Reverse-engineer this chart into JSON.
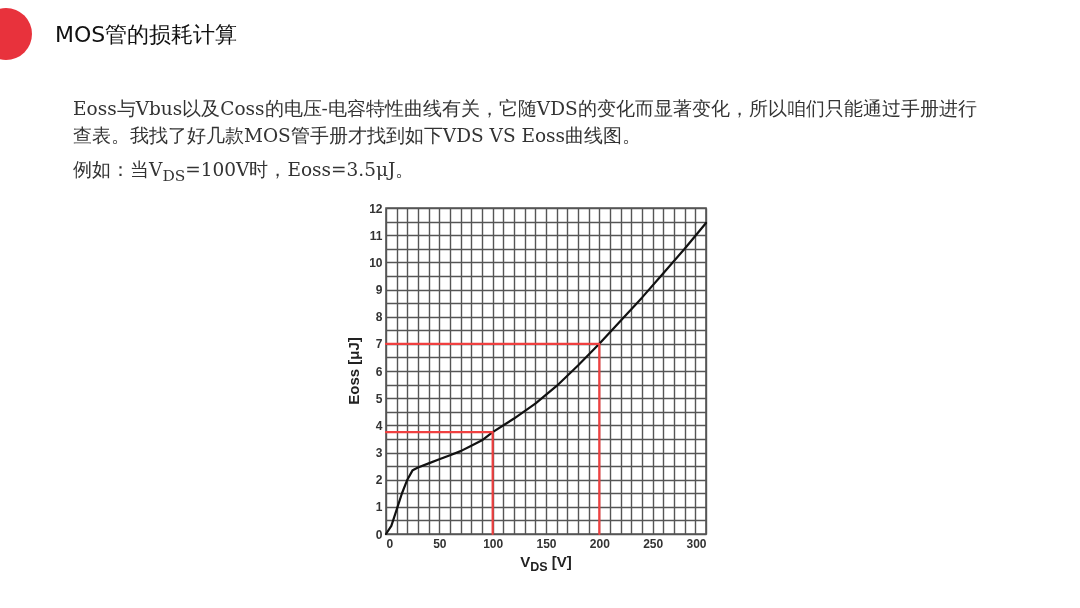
{
  "chart_data": {
    "type": "line",
    "title": "MOS管的损耗计算",
    "subtitle": "Eoss与Vbus以及Coss的电压-电容特性曲线有关，它随VDS的变化而显著变化，所以咱们只能通过手册进行查表。我找了好几款MOS管手册才找到如下VDS VS Eoss曲线图。",
    "annotations": [
      "例如：当V$_{DS}$=100V时，Eoss=3.5μJ。"
    ],
    "xlabel": "V$_{DS}$ [V]",
    "ylabel": "Eoss [μJ]",
    "xlim": [
      0,
      300
    ],
    "ylim": [
      0,
      12
    ],
    "xticks": [
      0,
      {
        "value": 10,
        "label": null
      },
      {
        "value": 20,
        "label": null
      },
      {
        "value": 30,
        "label": null
      },
      {
        "value": 40,
        "label": null
      },
      50,
      {
        "value": 60,
        "label": null
      },
      {
        "value": 70,
        "label": null
      },
      {
        "value": 80,
        "label": null
      },
      {
        "value": 90,
        "label": null
      },
      100,
      {
        "value": 110,
        "label": null
      },
      {
        "value": 120,
        "label": null
      },
      {
        "value": 130,
        "label": null
      },
      {
        "value": 140,
        "label": null
      },
      150,
      {
        "value": 160,
        "label": null
      },
      {
        "value": 170,
        "label": null
      },
      {
        "value": 180,
        "label": null
      },
      {
        "value": 190,
        "label": null
      },
      200,
      {
        "value": 210,
        "label": null
      },
      {
        "value": 220,
        "label": null
      },
      {
        "value": 230,
        "label": null
      },
      {
        "value": 240,
        "label": null
      },
      250,
      {
        "value": 260,
        "label": null
      },
      {
        "value": 270,
        "label": null
      },
      {
        "value": 280,
        "label": null
      },
      {
        "value": 290,
        "label": null
      },
      300
    ],
    "yticks": [
      0,
      {
        "value": 0.5,
        "label": null
      },
      1,
      {
        "value": 1.5,
        "label": null
      },
      2,
      {
        "value": 2.5,
        "label": null
      },
      3,
      {
        "value": 3.5,
        "label": null
      },
      4,
      {
        "value": 4.5,
        "label": null
      },
      5,
      {
        "value": 5.5,
        "label": null
      },
      6,
      {
        "value": 6.5,
        "label": null
      },
      7,
      {
        "value": 7.5,
        "label": null
      },
      8,
      {
        "value": 8.5,
        "label": null
      },
      9,
      {
        "value": 9.5,
        "label": null
      },
      10,
      {
        "value": 10.5,
        "label": null
      },
      11,
      {
        "value": 11.5,
        "label": null
      },
      12
    ],
    "grid": true,
    "series": [
      {
        "color": "#111111",
        "x": [
          0,
          5,
          10,
          15,
          20,
          25,
          30,
          40,
          50,
          60,
          70,
          80,
          90,
          100,
          120,
          140,
          160,
          180,
          200,
          220,
          240,
          260,
          280,
          300
        ],
        "values": [
          0,
          0.3,
          0.9,
          1.5,
          2.0,
          2.35,
          2.45,
          2.6,
          2.75,
          2.9,
          3.05,
          3.25,
          3.45,
          3.75,
          4.25,
          4.8,
          5.45,
          6.2,
          7.0,
          7.85,
          8.7,
          9.6,
          10.5,
          11.45
        ]
      },
      {
        "color": "#f04040",
        "x": [
          0,
          100,
          100
        ],
        "values": [
          3.75,
          3.75,
          0
        ]
      },
      {
        "color": "#f04040",
        "x": [
          0,
          200,
          200
        ],
        "values": [
          7,
          7,
          0
        ]
      }
    ]
  }
}
